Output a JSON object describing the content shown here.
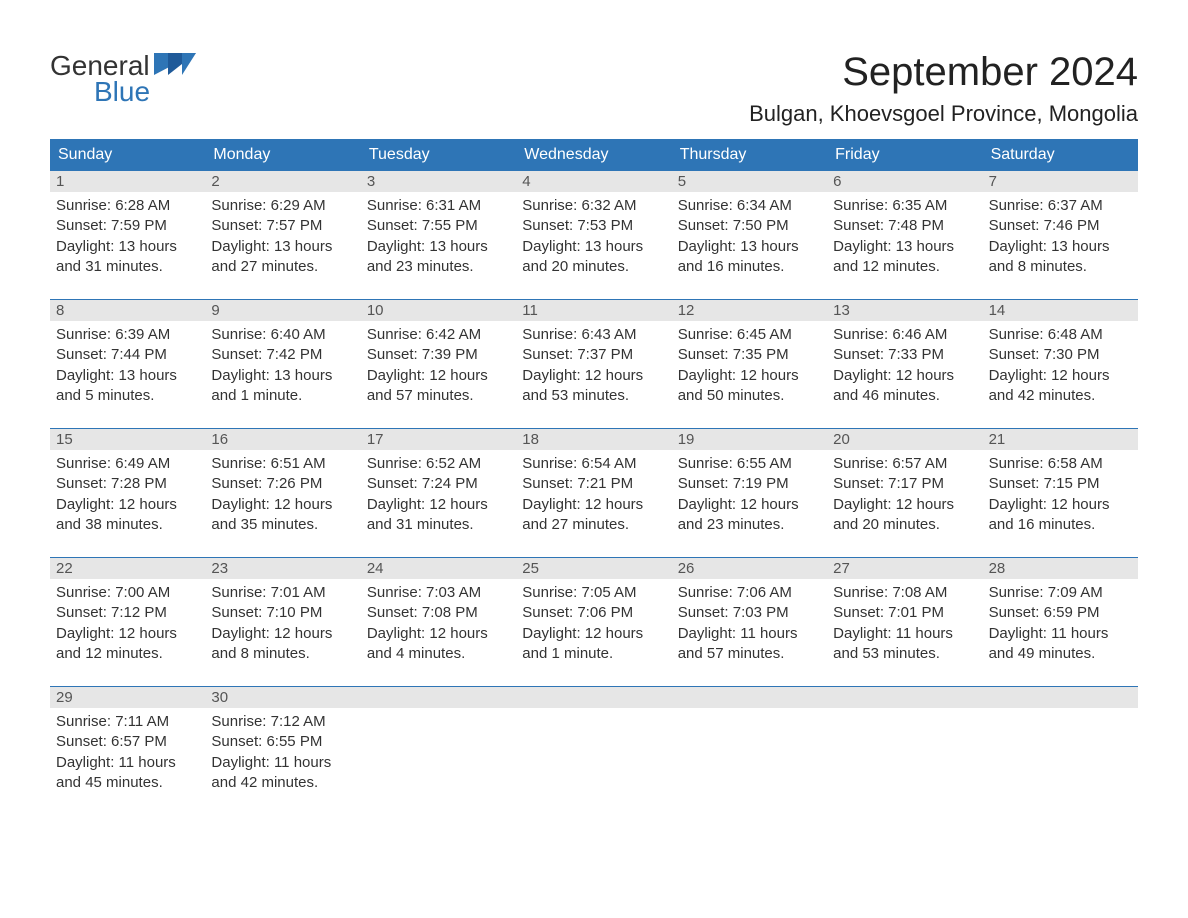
{
  "brand": {
    "word1": "General",
    "word2": "Blue",
    "logo_color": "#2e75b6"
  },
  "title": "September 2024",
  "location": "Bulgan, Khoevsgoel Province, Mongolia",
  "colors": {
    "header_bg": "#2e75b6",
    "header_text": "#ffffff",
    "daynum_bg": "#e6e6e6",
    "page_bg": "#ffffff",
    "text": "#333333"
  },
  "days_of_week": [
    "Sunday",
    "Monday",
    "Tuesday",
    "Wednesday",
    "Thursday",
    "Friday",
    "Saturday"
  ],
  "weeks": [
    [
      {
        "n": "1",
        "sunrise": "Sunrise: 6:28 AM",
        "sunset": "Sunset: 7:59 PM",
        "d1": "Daylight: 13 hours",
        "d2": "and 31 minutes."
      },
      {
        "n": "2",
        "sunrise": "Sunrise: 6:29 AM",
        "sunset": "Sunset: 7:57 PM",
        "d1": "Daylight: 13 hours",
        "d2": "and 27 minutes."
      },
      {
        "n": "3",
        "sunrise": "Sunrise: 6:31 AM",
        "sunset": "Sunset: 7:55 PM",
        "d1": "Daylight: 13 hours",
        "d2": "and 23 minutes."
      },
      {
        "n": "4",
        "sunrise": "Sunrise: 6:32 AM",
        "sunset": "Sunset: 7:53 PM",
        "d1": "Daylight: 13 hours",
        "d2": "and 20 minutes."
      },
      {
        "n": "5",
        "sunrise": "Sunrise: 6:34 AM",
        "sunset": "Sunset: 7:50 PM",
        "d1": "Daylight: 13 hours",
        "d2": "and 16 minutes."
      },
      {
        "n": "6",
        "sunrise": "Sunrise: 6:35 AM",
        "sunset": "Sunset: 7:48 PM",
        "d1": "Daylight: 13 hours",
        "d2": "and 12 minutes."
      },
      {
        "n": "7",
        "sunrise": "Sunrise: 6:37 AM",
        "sunset": "Sunset: 7:46 PM",
        "d1": "Daylight: 13 hours",
        "d2": "and 8 minutes."
      }
    ],
    [
      {
        "n": "8",
        "sunrise": "Sunrise: 6:39 AM",
        "sunset": "Sunset: 7:44 PM",
        "d1": "Daylight: 13 hours",
        "d2": "and 5 minutes."
      },
      {
        "n": "9",
        "sunrise": "Sunrise: 6:40 AM",
        "sunset": "Sunset: 7:42 PM",
        "d1": "Daylight: 13 hours",
        "d2": "and 1 minute."
      },
      {
        "n": "10",
        "sunrise": "Sunrise: 6:42 AM",
        "sunset": "Sunset: 7:39 PM",
        "d1": "Daylight: 12 hours",
        "d2": "and 57 minutes."
      },
      {
        "n": "11",
        "sunrise": "Sunrise: 6:43 AM",
        "sunset": "Sunset: 7:37 PM",
        "d1": "Daylight: 12 hours",
        "d2": "and 53 minutes."
      },
      {
        "n": "12",
        "sunrise": "Sunrise: 6:45 AM",
        "sunset": "Sunset: 7:35 PM",
        "d1": "Daylight: 12 hours",
        "d2": "and 50 minutes."
      },
      {
        "n": "13",
        "sunrise": "Sunrise: 6:46 AM",
        "sunset": "Sunset: 7:33 PM",
        "d1": "Daylight: 12 hours",
        "d2": "and 46 minutes."
      },
      {
        "n": "14",
        "sunrise": "Sunrise: 6:48 AM",
        "sunset": "Sunset: 7:30 PM",
        "d1": "Daylight: 12 hours",
        "d2": "and 42 minutes."
      }
    ],
    [
      {
        "n": "15",
        "sunrise": "Sunrise: 6:49 AM",
        "sunset": "Sunset: 7:28 PM",
        "d1": "Daylight: 12 hours",
        "d2": "and 38 minutes."
      },
      {
        "n": "16",
        "sunrise": "Sunrise: 6:51 AM",
        "sunset": "Sunset: 7:26 PM",
        "d1": "Daylight: 12 hours",
        "d2": "and 35 minutes."
      },
      {
        "n": "17",
        "sunrise": "Sunrise: 6:52 AM",
        "sunset": "Sunset: 7:24 PM",
        "d1": "Daylight: 12 hours",
        "d2": "and 31 minutes."
      },
      {
        "n": "18",
        "sunrise": "Sunrise: 6:54 AM",
        "sunset": "Sunset: 7:21 PM",
        "d1": "Daylight: 12 hours",
        "d2": "and 27 minutes."
      },
      {
        "n": "19",
        "sunrise": "Sunrise: 6:55 AM",
        "sunset": "Sunset: 7:19 PM",
        "d1": "Daylight: 12 hours",
        "d2": "and 23 minutes."
      },
      {
        "n": "20",
        "sunrise": "Sunrise: 6:57 AM",
        "sunset": "Sunset: 7:17 PM",
        "d1": "Daylight: 12 hours",
        "d2": "and 20 minutes."
      },
      {
        "n": "21",
        "sunrise": "Sunrise: 6:58 AM",
        "sunset": "Sunset: 7:15 PM",
        "d1": "Daylight: 12 hours",
        "d2": "and 16 minutes."
      }
    ],
    [
      {
        "n": "22",
        "sunrise": "Sunrise: 7:00 AM",
        "sunset": "Sunset: 7:12 PM",
        "d1": "Daylight: 12 hours",
        "d2": "and 12 minutes."
      },
      {
        "n": "23",
        "sunrise": "Sunrise: 7:01 AM",
        "sunset": "Sunset: 7:10 PM",
        "d1": "Daylight: 12 hours",
        "d2": "and 8 minutes."
      },
      {
        "n": "24",
        "sunrise": "Sunrise: 7:03 AM",
        "sunset": "Sunset: 7:08 PM",
        "d1": "Daylight: 12 hours",
        "d2": "and 4 minutes."
      },
      {
        "n": "25",
        "sunrise": "Sunrise: 7:05 AM",
        "sunset": "Sunset: 7:06 PM",
        "d1": "Daylight: 12 hours",
        "d2": "and 1 minute."
      },
      {
        "n": "26",
        "sunrise": "Sunrise: 7:06 AM",
        "sunset": "Sunset: 7:03 PM",
        "d1": "Daylight: 11 hours",
        "d2": "and 57 minutes."
      },
      {
        "n": "27",
        "sunrise": "Sunrise: 7:08 AM",
        "sunset": "Sunset: 7:01 PM",
        "d1": "Daylight: 11 hours",
        "d2": "and 53 minutes."
      },
      {
        "n": "28",
        "sunrise": "Sunrise: 7:09 AM",
        "sunset": "Sunset: 6:59 PM",
        "d1": "Daylight: 11 hours",
        "d2": "and 49 minutes."
      }
    ],
    [
      {
        "n": "29",
        "sunrise": "Sunrise: 7:11 AM",
        "sunset": "Sunset: 6:57 PM",
        "d1": "Daylight: 11 hours",
        "d2": "and 45 minutes."
      },
      {
        "n": "30",
        "sunrise": "Sunrise: 7:12 AM",
        "sunset": "Sunset: 6:55 PM",
        "d1": "Daylight: 11 hours",
        "d2": "and 42 minutes."
      },
      null,
      null,
      null,
      null,
      null
    ]
  ]
}
